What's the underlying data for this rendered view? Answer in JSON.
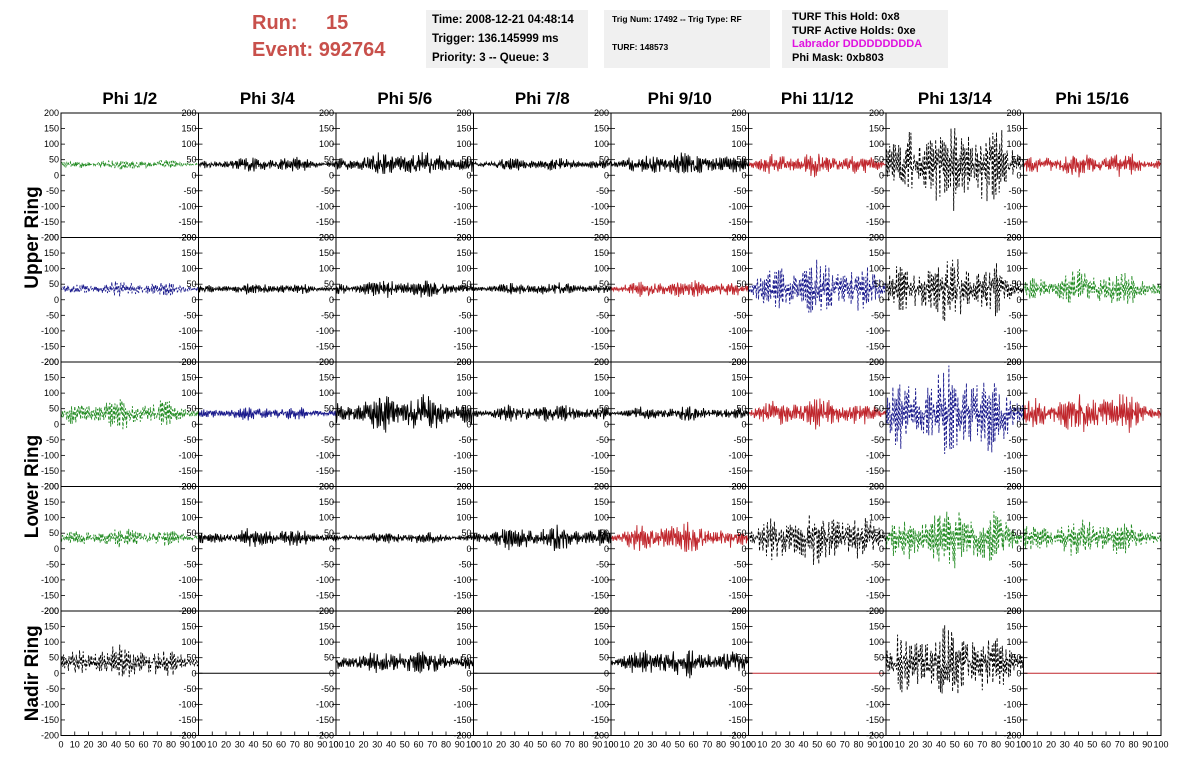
{
  "header": {
    "run_label": "Run:",
    "run_value": "15",
    "event_label": "Event:",
    "event_value": "992764",
    "time": "Time: 2008-12-21 04:48:14",
    "trigger": "Trigger: 136.145999 ms",
    "priority": "Priority: 3 -- Queue: 3",
    "trig_num": "Trig Num: 17492 -- Trig Type: RF",
    "turf": "TURF: 148573",
    "turf_hold": "TURF This Hold: 0x8",
    "turf_active": "TURF Active Holds: 0xe",
    "labrador": "Labrador DDDDDDDDDA",
    "phi_mask": "Phi Mask: 0xb803",
    "run_color": "#c8504b",
    "labrador_color": "#e011e0"
  },
  "chart_data": {
    "type": "line",
    "columns": [
      "Phi 1/2",
      "Phi 3/4",
      "Phi 5/6",
      "Phi 7/8",
      "Phi 9/10",
      "Phi 11/12",
      "Phi 13/14",
      "Phi 15/16"
    ],
    "ring_labels": [
      {
        "text": "Upper Ring"
      },
      {
        "text": "Lower Ring"
      },
      {
        "text": "Nadir Ring"
      }
    ],
    "ylim": [
      -200,
      200
    ],
    "yticks": [
      -200,
      -150,
      -100,
      -50,
      0,
      50,
      100,
      150,
      200
    ],
    "xlim": [
      0,
      100
    ],
    "xticks": [
      0,
      10,
      20,
      30,
      40,
      50,
      60,
      70,
      80,
      90,
      100
    ],
    "colors": {
      "green": "#228b22",
      "black": "#000000",
      "red": "#c0272d",
      "blue": "#1a1a8c"
    },
    "rows": [
      [
        {
          "color": "green",
          "style": "dashed",
          "offset": 35,
          "amp": 14
        },
        {
          "color": "black",
          "style": "solid",
          "offset": 35,
          "amp": 20
        },
        {
          "color": "black",
          "style": "solid",
          "offset": 35,
          "amp": 35
        },
        {
          "color": "black",
          "style": "solid",
          "offset": 35,
          "amp": 18
        },
        {
          "color": "black",
          "style": "solid",
          "offset": 35,
          "amp": 32
        },
        {
          "color": "red",
          "style": "solid",
          "offset": 35,
          "amp": 32
        },
        {
          "color": "black",
          "style": "dashed",
          "offset": 35,
          "amp": 120
        },
        {
          "color": "red",
          "style": "solid",
          "offset": 35,
          "amp": 35
        }
      ],
      [
        {
          "color": "blue",
          "style": "dashed",
          "offset": 35,
          "amp": 20
        },
        {
          "color": "black",
          "style": "solid",
          "offset": 35,
          "amp": 15
        },
        {
          "color": "black",
          "style": "solid",
          "offset": 35,
          "amp": 25
        },
        {
          "color": "black",
          "style": "solid",
          "offset": 35,
          "amp": 18
        },
        {
          "color": "red",
          "style": "solid",
          "offset": 35,
          "amp": 25
        },
        {
          "color": "blue",
          "style": "dashed",
          "offset": 35,
          "amp": 75
        },
        {
          "color": "black",
          "style": "dashed",
          "offset": 35,
          "amp": 85
        },
        {
          "color": "green",
          "style": "dashed",
          "offset": 35,
          "amp": 50
        }
      ],
      [
        {
          "color": "green",
          "style": "dashed",
          "offset": 35,
          "amp": 40
        },
        {
          "color": "blue",
          "style": "solid",
          "offset": 35,
          "amp": 18
        },
        {
          "color": "black",
          "style": "solid",
          "offset": 35,
          "amp": 50
        },
        {
          "color": "black",
          "style": "solid",
          "offset": 35,
          "amp": 25
        },
        {
          "color": "black",
          "style": "solid",
          "offset": 35,
          "amp": 20
        },
        {
          "color": "red",
          "style": "solid",
          "offset": 35,
          "amp": 40
        },
        {
          "color": "blue",
          "style": "dashed",
          "offset": 35,
          "amp": 120
        },
        {
          "color": "red",
          "style": "solid",
          "offset": 35,
          "amp": 60
        }
      ],
      [
        {
          "color": "green",
          "style": "dashed",
          "offset": 35,
          "amp": 25
        },
        {
          "color": "black",
          "style": "solid",
          "offset": 35,
          "amp": 25
        },
        {
          "color": "black",
          "style": "solid",
          "offset": 35,
          "amp": 15
        },
        {
          "color": "black",
          "style": "solid",
          "offset": 35,
          "amp": 35
        },
        {
          "color": "red",
          "style": "solid",
          "offset": 35,
          "amp": 40
        },
        {
          "color": "black",
          "style": "dashed",
          "offset": 35,
          "amp": 70
        },
        {
          "color": "green",
          "style": "dashed",
          "offset": 35,
          "amp": 80
        },
        {
          "color": "green",
          "style": "dashed",
          "offset": 35,
          "amp": 50
        }
      ],
      [
        {
          "color": "black",
          "style": "dashed",
          "offset": 35,
          "amp": 45
        },
        {
          "color": "black",
          "style": "solid",
          "offset": 0,
          "amp": 0
        },
        {
          "color": "black",
          "style": "solid",
          "offset": 35,
          "amp": 35
        },
        {
          "color": "black",
          "style": "solid",
          "offset": 0,
          "amp": 0
        },
        {
          "color": "black",
          "style": "solid",
          "offset": 35,
          "amp": 40
        },
        {
          "color": "red",
          "style": "solid",
          "offset": 0,
          "amp": 0
        },
        {
          "color": "black",
          "style": "dashed",
          "offset": 35,
          "amp": 100
        },
        {
          "color": "red",
          "style": "solid",
          "offset": 0,
          "amp": 0
        }
      ]
    ]
  }
}
